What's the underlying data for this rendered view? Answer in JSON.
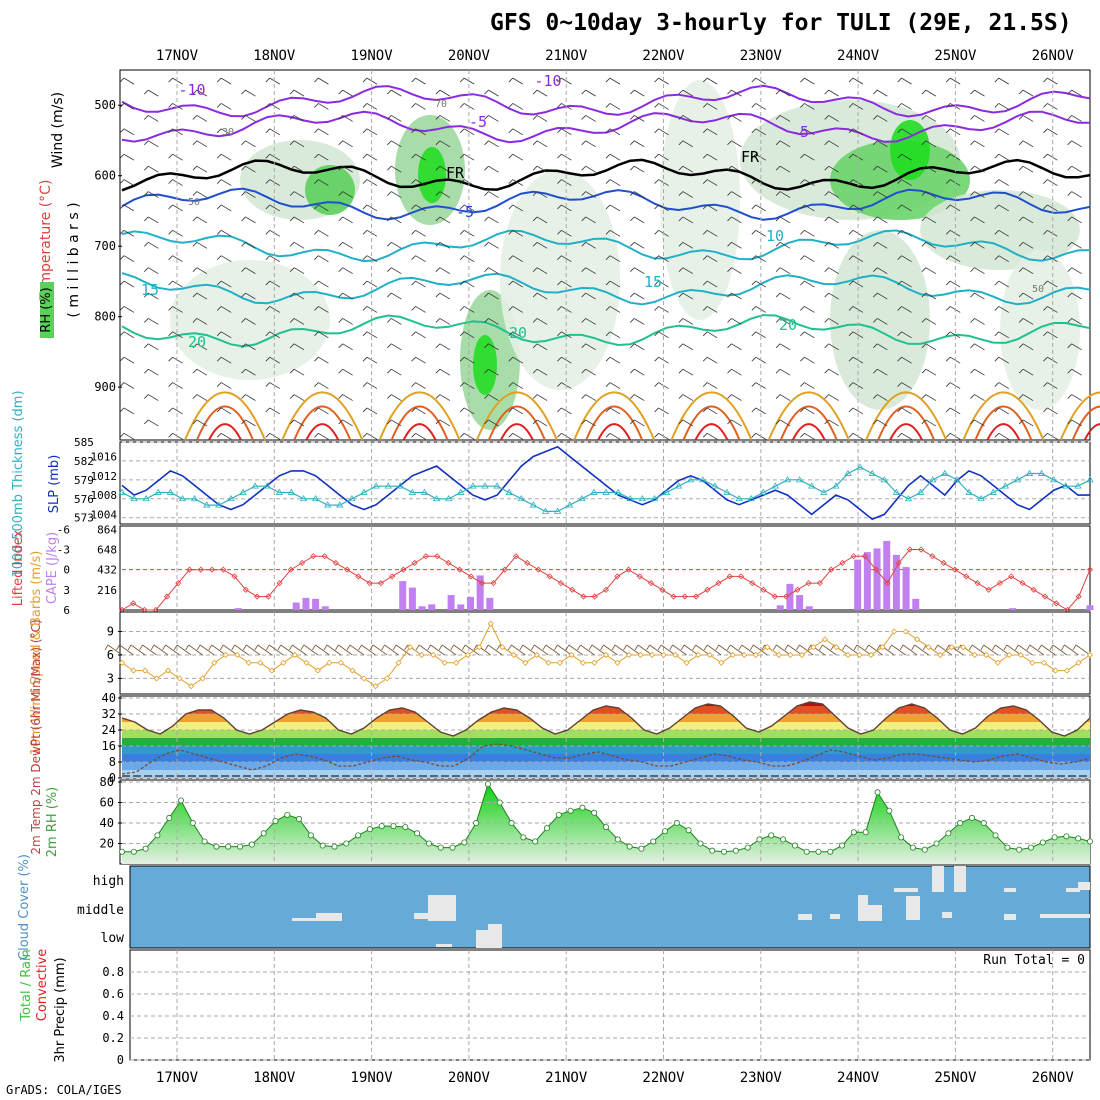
{
  "title": "GFS 0~10day 3-hourly for TULI (29E, 21.5S)",
  "credit": "GrADS: COLA/IGES",
  "colors": {
    "rh_fill": "#5ccf5c",
    "temp_purple": "#8a2be2",
    "temp_blue": "#1f4fd0",
    "temp_cyan": "#20b0c8",
    "temp_teal": "#20c090",
    "temp_orange": "#e0a020",
    "temp_red": "#e02020",
    "cape": "#c080f0",
    "lifted": "#e04040",
    "slp": "#1030c0",
    "thickness": "#30b0c0",
    "wind_speed": "#e0a030",
    "rh2m": "#40c040",
    "cloud": "#66aad8"
  },
  "chart_data": [
    {
      "type": "heatmap",
      "panel": "upper-air cross-section",
      "ylabel_parts": [
        "Wind (m/s)",
        "Temperature (°C)",
        "RH (%)",
        "( m i l l i b a r s )"
      ],
      "x": [
        "17NOV",
        "18NOV",
        "19NOV",
        "20NOV",
        "21NOV",
        "22NOV",
        "23NOV",
        "24NOV",
        "25NOV",
        "26NOV"
      ],
      "y_ticks": [
        500,
        600,
        700,
        800,
        900
      ],
      "ylim": [
        975,
        450
      ],
      "temperature_labels": [
        "-10",
        "-10",
        "-5",
        "-5",
        "-5",
        "10",
        "15",
        "15",
        "20",
        "20",
        "20",
        "FR",
        "FR"
      ],
      "rh_labels": [
        "30",
        "50",
        "70",
        "50"
      ]
    },
    {
      "type": "line",
      "panel": "slp-thickness",
      "ylabel_left": "1000-500mb Thickness (dm)",
      "ylabel_right": "SLP (mb)",
      "thickness_ticks": [
        573,
        576,
        579,
        582,
        585
      ],
      "slp_ticks": [
        1004,
        1008,
        1012,
        1016
      ],
      "series": [
        {
          "name": "SLP (mb)",
          "values": [
            1010,
            1008,
            1009,
            1011,
            1013,
            1012,
            1010,
            1008,
            1006,
            1005,
            1006,
            1008,
            1010,
            1012,
            1013,
            1013,
            1012,
            1010,
            1008,
            1006,
            1005,
            1006,
            1008,
            1010,
            1012,
            1013,
            1014,
            1012,
            1010,
            1008,
            1007,
            1008,
            1011,
            1014,
            1016,
            1017,
            1018,
            1016,
            1014,
            1012,
            1010,
            1008,
            1007,
            1006,
            1007,
            1009,
            1011,
            1012,
            1011,
            1009,
            1007,
            1006,
            1007,
            1008,
            1009,
            1008,
            1006,
            1004,
            1006,
            1008,
            1007,
            1005,
            1003,
            1004,
            1007,
            1010,
            1012,
            1010,
            1008,
            1011,
            1013,
            1012,
            1010,
            1008,
            1006,
            1005,
            1007,
            1009,
            1010,
            1008,
            1008
          ]
        },
        {
          "name": "1000-500mb Thickness (dm)",
          "values": [
            577,
            576,
            576,
            577,
            577,
            576,
            576,
            575,
            575,
            576,
            577,
            578,
            578,
            577,
            577,
            576,
            576,
            575,
            575,
            576,
            577,
            578,
            578,
            578,
            577,
            577,
            576,
            576,
            577,
            578,
            578,
            578,
            577,
            576,
            575,
            574,
            574,
            575,
            576,
            577,
            577,
            577,
            576,
            576,
            576,
            577,
            578,
            579,
            579,
            578,
            577,
            576,
            576,
            577,
            578,
            579,
            579,
            578,
            577,
            578,
            580,
            581,
            580,
            579,
            577,
            576,
            577,
            579,
            580,
            579,
            577,
            576,
            577,
            578,
            579,
            580,
            580,
            579,
            578,
            578,
            579
          ]
        }
      ]
    },
    {
      "type": "bar",
      "panel": "lifted-cape",
      "ylabel_left": "Lifted Index",
      "ylabel_right": "CAPE (J/kg)",
      "lifted_ticks": [
        6,
        3,
        0,
        -3,
        -6
      ],
      "cape_ticks": [
        216,
        432,
        648,
        864
      ],
      "cape_values": [
        0,
        0,
        0,
        0,
        0,
        0,
        0,
        0,
        0,
        0,
        0,
        0,
        20,
        0,
        0,
        0,
        0,
        0,
        80,
        130,
        120,
        40,
        0,
        0,
        0,
        0,
        0,
        0,
        0,
        310,
        240,
        40,
        60,
        0,
        160,
        60,
        140,
        370,
        130,
        0,
        0,
        0,
        0,
        0,
        0,
        0,
        0,
        0,
        0,
        0,
        0,
        0,
        0,
        0,
        0,
        0,
        0,
        0,
        0,
        0,
        0,
        0,
        0,
        0,
        0,
        0,
        0,
        0,
        50,
        280,
        160,
        40,
        0,
        0,
        0,
        0,
        540,
        620,
        660,
        740,
        590,
        460,
        120,
        0,
        0,
        0,
        0,
        0,
        0,
        0,
        0,
        0,
        20,
        0,
        0,
        0,
        0,
        0,
        0,
        0,
        50
      ],
      "lifted_values": [
        6,
        5,
        6,
        6,
        4,
        2,
        0,
        0,
        0,
        0,
        1,
        3,
        4,
        4,
        2,
        0,
        -1,
        -2,
        -2,
        -1,
        0,
        1,
        2,
        2,
        1,
        0,
        -1,
        -2,
        -2,
        -1,
        0,
        1,
        2,
        2,
        0,
        -2,
        -1,
        0,
        1,
        2,
        3,
        4,
        4,
        3,
        1,
        0,
        1,
        2,
        3,
        4,
        4,
        4,
        3,
        2,
        1,
        1,
        2,
        3,
        4,
        4,
        3,
        2,
        2,
        0,
        -1,
        -2,
        -2,
        0,
        2,
        -1,
        -3,
        -3,
        -2,
        -1,
        0,
        1,
        2,
        3,
        2,
        1,
        2,
        3,
        4,
        5,
        6,
        4,
        0
      ]
    },
    {
      "type": "line",
      "panel": "10m-wind",
      "ylabel": "10m Wind Speed & Barbs (m/s)",
      "y_ticks": [
        3,
        6,
        9
      ],
      "values": [
        5,
        4,
        4,
        3,
        4,
        3,
        2,
        3,
        5,
        6,
        6,
        5,
        5,
        4,
        5,
        6,
        5,
        4,
        5,
        5,
        4,
        3,
        2,
        3,
        5,
        7,
        6,
        6,
        5,
        5,
        6,
        7,
        10,
        7,
        6,
        5,
        6,
        5,
        5,
        6,
        5,
        5,
        6,
        5,
        6,
        6,
        6,
        6,
        6,
        5,
        6,
        6,
        5,
        6,
        6,
        6,
        7,
        6,
        6,
        6,
        7,
        8,
        7,
        6,
        6,
        6,
        7,
        9,
        9,
        8,
        7,
        6,
        7,
        7,
        6,
        6,
        5,
        6,
        6,
        5,
        5,
        4,
        4,
        5,
        6
      ]
    },
    {
      "type": "area",
      "panel": "2m-temp",
      "ylabel": "2m Temp 2m DewPt (6hr Min/Max) (°C)",
      "y_ticks": [
        0,
        8,
        16,
        24,
        32,
        40
      ],
      "temp_values": [
        30,
        28,
        24,
        22,
        26,
        32,
        34,
        34,
        30,
        24,
        22,
        24,
        28,
        32,
        34,
        33,
        30,
        24,
        22,
        25,
        30,
        34,
        35,
        33,
        28,
        23,
        21,
        24,
        29,
        33,
        35,
        34,
        30,
        25,
        22,
        24,
        29,
        34,
        36,
        35,
        30,
        24,
        22,
        25,
        30,
        35,
        37,
        36,
        31,
        25,
        23,
        26,
        31,
        36,
        38,
        37,
        31,
        25,
        22,
        24,
        30,
        35,
        37,
        35,
        30,
        24,
        22,
        25,
        31,
        35,
        36,
        34,
        29,
        23,
        21,
        24,
        30
      ],
      "dewpoint_values": [
        2,
        3,
        8,
        12,
        14,
        12,
        10,
        8,
        6,
        4,
        6,
        10,
        12,
        11,
        9,
        6,
        6,
        8,
        10,
        11,
        9,
        8,
        6,
        6,
        10,
        16,
        17,
        16,
        14,
        12,
        10,
        10,
        12,
        13,
        11,
        9,
        8,
        6,
        6,
        8,
        10,
        12,
        11,
        9,
        8,
        6,
        6,
        8,
        11,
        14,
        13,
        11,
        9,
        10,
        12,
        12,
        11,
        10,
        9,
        8,
        9,
        11,
        12,
        10,
        8,
        7,
        8,
        10
      ]
    },
    {
      "type": "area",
      "panel": "2m-rh",
      "ylabel": "2m RH (%)",
      "y_ticks": [
        20,
        40,
        60,
        80
      ],
      "values": [
        12,
        12,
        15,
        28,
        45,
        62,
        40,
        22,
        17,
        17,
        17,
        19,
        30,
        42,
        48,
        44,
        28,
        18,
        17,
        20,
        28,
        34,
        37,
        37,
        36,
        30,
        20,
        16,
        16,
        21,
        40,
        78,
        60,
        40,
        26,
        22,
        35,
        48,
        52,
        55,
        50,
        36,
        24,
        17,
        15,
        22,
        32,
        40,
        33,
        20,
        13,
        12,
        13,
        16,
        24,
        28,
        24,
        18,
        12,
        12,
        12,
        18,
        31,
        31,
        70,
        52,
        26,
        16,
        14,
        20,
        30,
        40,
        45,
        40,
        28,
        16,
        14,
        16,
        21,
        26,
        27,
        25,
        22
      ]
    },
    {
      "type": "heatmap",
      "panel": "cloud-cover",
      "ylabel": "Cloud Cover (%)",
      "levels": [
        "high",
        "middle",
        "low"
      ]
    },
    {
      "type": "bar",
      "panel": "precip",
      "ylabel_parts": [
        "Total / Rain",
        "Convective",
        "3hr Precip (mm)"
      ],
      "y_ticks": [
        0,
        0.2,
        0.4,
        0.6,
        0.8
      ],
      "ylim": [
        0,
        1
      ],
      "annotation": "Run Total = 0",
      "values": []
    }
  ]
}
